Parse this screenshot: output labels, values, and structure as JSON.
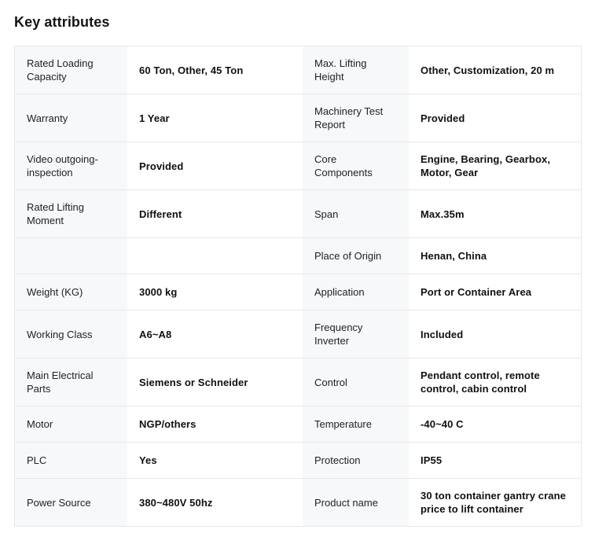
{
  "page": {
    "title": "Key attributes"
  },
  "colors": {
    "label_cell_bg": "#f7f8fa",
    "value_cell_bg": "#ffffff",
    "border": "#e8e8e8",
    "title_text": "#141414",
    "label_text": "#222222",
    "value_text": "#101010"
  },
  "table": {
    "rows": [
      {
        "left": {
          "label": "Rated Loading Capacity",
          "value": "60 Ton, Other, 45 Ton"
        },
        "right": {
          "label": "Max. Lifting Height",
          "value": "Other, Customization, 20 m"
        }
      },
      {
        "left": {
          "label": "Warranty",
          "value": "1 Year"
        },
        "right": {
          "label": "Machinery Test Report",
          "value": "Provided"
        }
      },
      {
        "left": {
          "label": "Video outgoing-inspection",
          "value": "Provided"
        },
        "right": {
          "label": "Core Components",
          "value": "Engine, Bearing, Gearbox, Motor, Gear"
        }
      },
      {
        "left": {
          "label": "Rated Lifting Moment",
          "value": "Different"
        },
        "right": {
          "label": "Span",
          "value": "Max.35m"
        }
      },
      {
        "left": {
          "label": "",
          "value": ""
        },
        "right": {
          "label": "Place of Origin",
          "value": "Henan, China"
        }
      },
      {
        "left": {
          "label": "Weight (KG)",
          "value": "3000 kg"
        },
        "right": {
          "label": "Application",
          "value": "Port or Container Area"
        }
      },
      {
        "left": {
          "label": "Working Class",
          "value": "A6~A8"
        },
        "right": {
          "label": "Frequency Inverter",
          "value": "Included"
        }
      },
      {
        "left": {
          "label": "Main Electrical Parts",
          "value": "Siemens or Schneider"
        },
        "right": {
          "label": "Control",
          "value": "Pendant control, remote control, cabin control"
        }
      },
      {
        "left": {
          "label": "Motor",
          "value": "NGP/others"
        },
        "right": {
          "label": "Temperature",
          "value": "-40~40 C"
        }
      },
      {
        "left": {
          "label": "PLC",
          "value": "Yes"
        },
        "right": {
          "label": "Protection",
          "value": "IP55"
        }
      },
      {
        "left": {
          "label": "Power Source",
          "value": "380~480V 50hz"
        },
        "right": {
          "label": "Product name",
          "value": "30 ton container gantry crane price to lift container"
        }
      }
    ]
  }
}
